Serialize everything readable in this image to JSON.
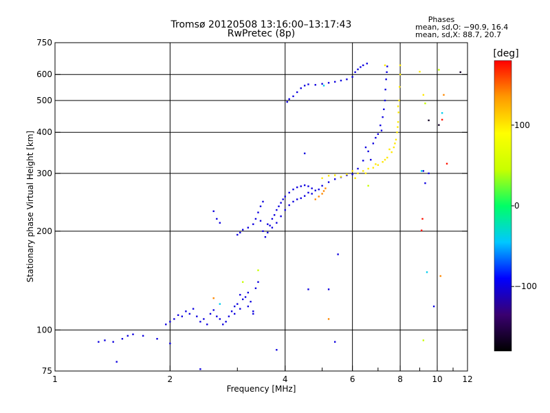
{
  "chart_data": {
    "type": "scatter",
    "title": "Tromsø 20120508 13:16:00–13:17:43",
    "subtitle": "RwPretec (8p)",
    "xlabel": "Frequency [MHz]",
    "ylabel": "Stationary phase Virtual Height [km]",
    "x_scale": "log",
    "y_scale": "log",
    "xlim": [
      1,
      12
    ],
    "ylim": [
      75,
      750
    ],
    "x_ticks": [
      1,
      2,
      4,
      6,
      8,
      10,
      12
    ],
    "x_tick_labels": [
      "1",
      "2",
      "4",
      "6",
      "8",
      "10",
      "12"
    ],
    "x_minor_ticks": [
      3,
      5,
      7,
      9,
      11
    ],
    "y_ticks": [
      75,
      100,
      200,
      300,
      400,
      500,
      600,
      750
    ],
    "y_tick_labels": [
      "75",
      "100",
      "200",
      "300",
      "400",
      "500",
      "600",
      "750"
    ],
    "x_gridlines": [
      2,
      4,
      6,
      8,
      10
    ],
    "y_gridlines": [
      100,
      200,
      300,
      400,
      500,
      600
    ],
    "grid": true,
    "phase_legend": {
      "title": "Phases",
      "line1": "mean, sd,O: −90.9, 16.4",
      "line2": "mean, sd,X:  88.7, 20.7"
    },
    "colorbar": {
      "label": "[deg]",
      "min": -180,
      "max": 180,
      "ticks": [
        100,
        0,
        -100
      ],
      "tick_labels": [
        "100",
        "0",
        "−100"
      ]
    },
    "color_scale": [
      "#000000",
      "#3a0070",
      "#0000ff",
      "#00c8ff",
      "#00ff66",
      "#c8ff00",
      "#ffff00",
      "#ff9900",
      "#ff0000"
    ],
    "series": [
      {
        "phase": -100,
        "points": [
          [
            1.3,
            92
          ],
          [
            1.35,
            93
          ],
          [
            1.42,
            92
          ],
          [
            1.5,
            94
          ],
          [
            1.55,
            96
          ],
          [
            1.6,
            97
          ],
          [
            1.7,
            96
          ],
          [
            1.85,
            94
          ],
          [
            1.95,
            104
          ],
          [
            2.0,
            106
          ],
          [
            2.05,
            108
          ],
          [
            2.1,
            111
          ],
          [
            2.15,
            110
          ],
          [
            2.2,
            114
          ],
          [
            2.25,
            112
          ],
          [
            2.3,
            116
          ],
          [
            2.35,
            110
          ],
          [
            2.4,
            106
          ],
          [
            2.45,
            108
          ],
          [
            2.5,
            104
          ],
          [
            2.55,
            112
          ],
          [
            2.6,
            115
          ],
          [
            2.65,
            110
          ],
          [
            2.7,
            108
          ],
          [
            2.75,
            104
          ],
          [
            2.8,
            106
          ],
          [
            2.85,
            110
          ],
          [
            2.9,
            114
          ],
          [
            2.95,
            118
          ],
          [
            3.0,
            120
          ],
          [
            3.05,
            116
          ],
          [
            3.1,
            124
          ],
          [
            3.15,
            126
          ],
          [
            3.2,
            130
          ],
          [
            3.25,
            122
          ],
          [
            3.3,
            114
          ],
          [
            3.35,
            134
          ],
          [
            3.4,
            140
          ],
          [
            2.95,
            112
          ],
          [
            3.05,
            128
          ],
          [
            3.2,
            118
          ],
          [
            3.3,
            112
          ],
          [
            2.6,
            230
          ],
          [
            2.65,
            218
          ],
          [
            2.7,
            212
          ],
          [
            3.0,
            195
          ],
          [
            3.05,
            198
          ],
          [
            3.1,
            202
          ],
          [
            3.2,
            205
          ],
          [
            3.3,
            210
          ],
          [
            3.35,
            218
          ],
          [
            3.4,
            228
          ],
          [
            3.45,
            238
          ],
          [
            3.5,
            246
          ],
          [
            3.45,
            215
          ],
          [
            3.5,
            200
          ],
          [
            3.55,
            192
          ],
          [
            3.6,
            198
          ],
          [
            3.65,
            208
          ],
          [
            3.7,
            218
          ],
          [
            3.75,
            224
          ],
          [
            3.8,
            232
          ],
          [
            3.85,
            238
          ],
          [
            3.9,
            244
          ],
          [
            3.95,
            250
          ],
          [
            4.0,
            255
          ],
          [
            4.1,
            262
          ],
          [
            4.2,
            268
          ],
          [
            4.3,
            272
          ],
          [
            4.4,
            274
          ],
          [
            4.5,
            276
          ],
          [
            4.6,
            274
          ],
          [
            4.7,
            270
          ],
          [
            4.8,
            266
          ],
          [
            4.9,
            268
          ],
          [
            3.6,
            210
          ],
          [
            3.7,
            205
          ],
          [
            3.8,
            212
          ],
          [
            3.9,
            222
          ],
          [
            4.0,
            232
          ],
          [
            4.1,
            240
          ],
          [
            4.2,
            246
          ],
          [
            4.3,
            250
          ],
          [
            4.4,
            252
          ],
          [
            4.5,
            256
          ],
          [
            4.6,
            262
          ],
          [
            4.7,
            260
          ],
          [
            5.0,
            275
          ],
          [
            5.2,
            282
          ],
          [
            5.4,
            288
          ],
          [
            5.6,
            292
          ],
          [
            5.8,
            296
          ],
          [
            6.0,
            298
          ],
          [
            6.2,
            310
          ],
          [
            6.4,
            328
          ],
          [
            6.6,
            350
          ],
          [
            6.8,
            370
          ],
          [
            7.0,
            395
          ],
          [
            7.1,
            420
          ],
          [
            7.2,
            445
          ],
          [
            7.25,
            470
          ],
          [
            7.3,
            500
          ],
          [
            7.32,
            540
          ],
          [
            7.35,
            580
          ],
          [
            7.38,
            610
          ],
          [
            7.4,
            635
          ],
          [
            6.5,
            360
          ],
          [
            6.7,
            330
          ],
          [
            6.9,
            385
          ],
          [
            7.15,
            405
          ],
          [
            4.05,
            495
          ],
          [
            4.1,
            505
          ],
          [
            4.2,
            515
          ],
          [
            4.3,
            530
          ],
          [
            4.4,
            545
          ],
          [
            4.5,
            555
          ],
          [
            4.6,
            560
          ],
          [
            4.8,
            558
          ],
          [
            5.0,
            562
          ],
          [
            5.2,
            566
          ],
          [
            5.4,
            570
          ],
          [
            5.6,
            575
          ],
          [
            5.8,
            580
          ],
          [
            6.0,
            590
          ],
          [
            6.1,
            610
          ],
          [
            6.2,
            622
          ],
          [
            6.3,
            632
          ],
          [
            6.4,
            640
          ],
          [
            6.55,
            648
          ],
          [
            9.2,
            305
          ],
          [
            9.3,
            280
          ],
          [
            9.5,
            300
          ],
          [
            9.8,
            118
          ],
          [
            4.5,
            345
          ],
          [
            4.6,
            133
          ],
          [
            5.2,
            133
          ],
          [
            5.5,
            170
          ],
          [
            3.8,
            87
          ],
          [
            5.4,
            92
          ],
          [
            1.45,
            80
          ],
          [
            2.0,
            91
          ],
          [
            2.4,
            76
          ]
        ]
      },
      {
        "phase": 100,
        "points": [
          [
            5.0,
            290
          ],
          [
            5.2,
            295
          ],
          [
            5.4,
            296
          ],
          [
            5.6,
            293
          ],
          [
            5.8,
            298
          ],
          [
            6.0,
            305
          ],
          [
            6.2,
            300
          ],
          [
            6.4,
            305
          ],
          [
            6.6,
            310
          ],
          [
            6.8,
            312
          ],
          [
            7.0,
            318
          ],
          [
            7.2,
            325
          ],
          [
            7.4,
            335
          ],
          [
            7.6,
            348
          ],
          [
            7.7,
            360
          ],
          [
            7.8,
            380
          ],
          [
            7.85,
            400
          ],
          [
            7.9,
            430
          ],
          [
            7.92,
            460
          ],
          [
            7.95,
            500
          ],
          [
            7.97,
            550
          ],
          [
            8.0,
            600
          ],
          [
            8.0,
            640
          ],
          [
            6.1,
            290
          ],
          [
            6.5,
            300
          ],
          [
            6.9,
            320
          ],
          [
            7.3,
            330
          ],
          [
            7.5,
            355
          ],
          [
            7.75,
            370
          ],
          [
            7.88,
            415
          ],
          [
            7.9,
            480
          ],
          [
            7.3,
            640
          ],
          [
            9.0,
            612
          ],
          [
            9.2,
            520
          ]
        ]
      },
      {
        "phase": 140,
        "points": [
          [
            4.8,
            250
          ],
          [
            4.9,
            255
          ],
          [
            5.0,
            260
          ],
          [
            5.05,
            265
          ],
          [
            5.1,
            270
          ],
          [
            10.2,
            146
          ],
          [
            10.4,
            520
          ],
          [
            2.6,
            125
          ],
          [
            5.2,
            108
          ]
        ]
      },
      {
        "phase": 45,
        "points": [
          [
            3.4,
            152
          ],
          [
            9.3,
            490
          ],
          [
            9.2,
            93
          ],
          [
            10.1,
            620
          ],
          [
            6.6,
            275
          ],
          [
            3.1,
            140
          ]
        ]
      },
      {
        "phase": -40,
        "points": [
          [
            5.05,
            555
          ],
          [
            9.1,
            305
          ],
          [
            9.4,
            150
          ],
          [
            10.3,
            458
          ],
          [
            2.7,
            120
          ]
        ]
      },
      {
        "phase": 175,
        "points": [
          [
            9.15,
            218
          ],
          [
            9.1,
            201
          ],
          [
            10.6,
            321
          ],
          [
            10.3,
            437
          ]
        ]
      },
      {
        "phase": -165,
        "points": [
          [
            9.5,
            435
          ],
          [
            10.1,
            421
          ],
          [
            11.5,
            610
          ]
        ]
      }
    ]
  }
}
